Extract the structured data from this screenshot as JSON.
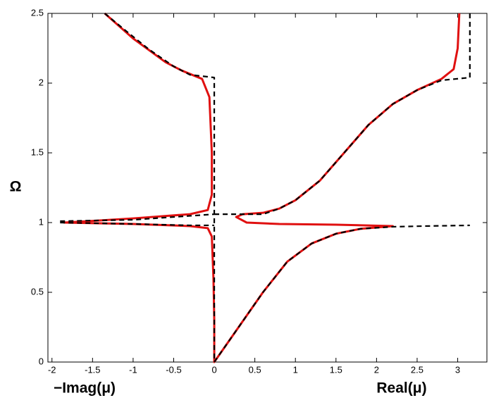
{
  "chart_data": {
    "type": "line",
    "xlabel_imag": "−Imag(μ)",
    "xlabel_real": "Real(μ)",
    "ylabel": "Ω",
    "xlim": [
      -2.05,
      3.36
    ],
    "ylim": [
      0,
      2.5
    ],
    "xticks": [
      -2,
      -1.5,
      -1,
      -0.5,
      0,
      0.5,
      1,
      1.5,
      2,
      2.5,
      3
    ],
    "yticks": [
      0,
      0.5,
      1,
      1.5,
      2,
      2.5
    ],
    "series": [
      {
        "color": "#e01010",
        "dashed": false,
        "x": [
          -1.35,
          -1.0,
          -0.6,
          -0.4,
          -0.15,
          -0.06,
          -0.03,
          -0.03,
          -0.08,
          -0.3,
          -1.0,
          -1.85,
          -1.0,
          -0.3,
          -0.08,
          -0.03,
          -0.01,
          0,
          0,
          0.3,
          0.6,
          0.9,
          1.2,
          1.5,
          1.8,
          2.2,
          1.5,
          0.8,
          0.4,
          0.27,
          0.35,
          0.6,
          0.8,
          1.0,
          1.3,
          1.6,
          1.9,
          2.2,
          2.5,
          2.8,
          2.95,
          3.0,
          3.02
        ],
        "values": [
          2.5,
          2.32,
          2.15,
          2.09,
          2.03,
          1.9,
          1.5,
          1.2,
          1.09,
          1.06,
          1.03,
          1.0,
          0.99,
          0.975,
          0.96,
          0.9,
          0.6,
          0.3,
          0,
          0.25,
          0.5,
          0.72,
          0.85,
          0.92,
          0.955,
          0.975,
          0.985,
          0.99,
          1.0,
          1.04,
          1.06,
          1.07,
          1.1,
          1.16,
          1.3,
          1.5,
          1.7,
          1.85,
          1.95,
          2.03,
          2.1,
          2.25,
          2.5
        ]
      },
      {
        "color": "#000000",
        "dashed": true,
        "x": [
          -1.35,
          -1.1,
          -0.8,
          -0.5,
          -0.3,
          0,
          0,
          0,
          null,
          0,
          0.6,
          0.8,
          1.0,
          1.3,
          1.6,
          1.9,
          2.2,
          2.5,
          2.8,
          3.15,
          3.15,
          null,
          -1.9,
          -1.0,
          -0.5,
          0,
          null,
          -1.9,
          -1.0,
          -0.3,
          0,
          null,
          0,
          0.3,
          0.6,
          0.9,
          1.2,
          1.5,
          1.8,
          2.2,
          2.6,
          3.15
        ],
        "values": [
          2.5,
          2.38,
          2.24,
          2.12,
          2.06,
          2.04,
          1.06,
          0,
          null,
          1.06,
          1.06,
          1.1,
          1.16,
          1.3,
          1.5,
          1.7,
          1.85,
          1.95,
          2.02,
          2.04,
          2.5,
          null,
          1.01,
          1.02,
          1.04,
          1.06,
          null,
          1.0,
          0.99,
          0.98,
          0.98,
          null,
          0,
          0.25,
          0.5,
          0.72,
          0.85,
          0.92,
          0.955,
          0.97,
          0.975,
          0.98
        ]
      }
    ]
  }
}
